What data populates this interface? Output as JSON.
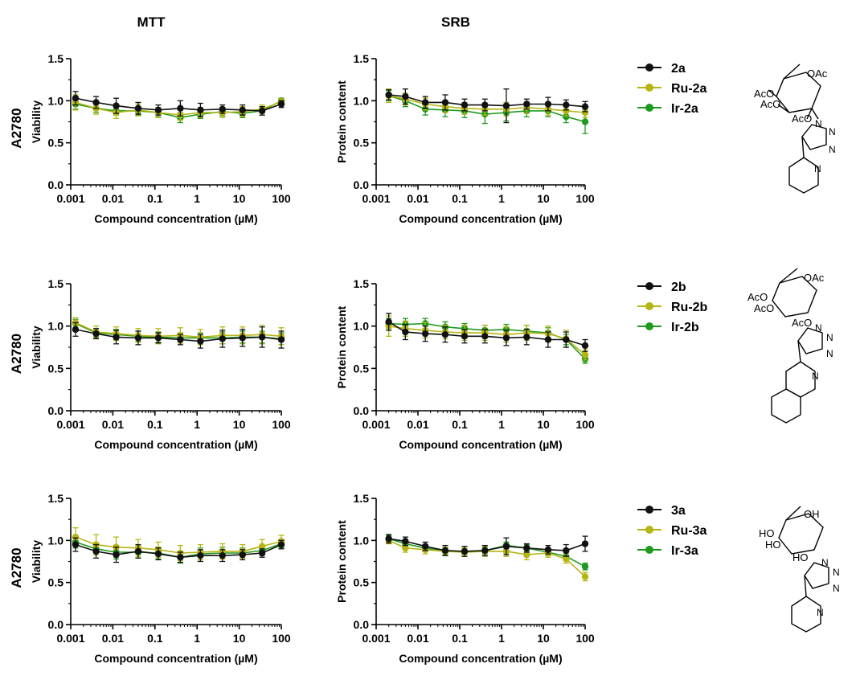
{
  "figure": {
    "columns": [
      "MTT",
      "SRB"
    ],
    "row_label": "A2780",
    "x_axis_label": "Compound concentration (µM)",
    "x_tick_labels": [
      "0.001",
      "0.01",
      "0.1",
      "1",
      "10",
      "100"
    ],
    "y_tick_labels": [
      "0.0",
      "0.5",
      "1.0",
      "1.5"
    ]
  },
  "legends": [
    {
      "entries": [
        {
          "label": "2a",
          "color": "#111111"
        },
        {
          "label": "Ru-2a",
          "color": "#b5b512"
        },
        {
          "label": "Ir-2a",
          "color": "#1e9a1e"
        }
      ]
    },
    {
      "entries": [
        {
          "label": "2b",
          "color": "#111111"
        },
        {
          "label": "Ru-2b",
          "color": "#b5b512"
        },
        {
          "label": "Ir-2b",
          "color": "#1e9a1e"
        }
      ]
    },
    {
      "entries": [
        {
          "label": "3a",
          "color": "#111111"
        },
        {
          "label": "Ru-3a",
          "color": "#b5b512"
        },
        {
          "label": "Ir-3a",
          "color": "#1e9a1e"
        }
      ]
    }
  ],
  "structures": [
    {
      "labels": [
        "OAc",
        "AcO",
        "AcO",
        "AcO",
        "N",
        "N",
        "N",
        "N"
      ]
    },
    {
      "labels": [
        "OAc",
        "AcO",
        "AcO",
        "AcO",
        "N",
        "N",
        "N",
        "N"
      ]
    },
    {
      "labels": [
        "OH",
        "HO",
        "HO",
        "HO",
        "N",
        "N",
        "N",
        "N"
      ]
    }
  ],
  "chart_data": [
    {
      "type": "scatter",
      "row": 0,
      "col": 0,
      "title": "MTT",
      "ylabel": "Viability",
      "xlabel": "Compound concentration (µM)",
      "xscale": "log",
      "xlim": [
        0.001,
        100
      ],
      "ylim": [
        0,
        1.5
      ],
      "x": [
        0.0013,
        0.004,
        0.012,
        0.04,
        0.12,
        0.4,
        1.2,
        4,
        12,
        35,
        100
      ],
      "series": [
        {
          "name": "2a",
          "color": "#111111",
          "values": [
            1.03,
            0.98,
            0.94,
            0.91,
            0.89,
            0.91,
            0.89,
            0.9,
            0.89,
            0.88,
            0.96
          ],
          "errors": [
            0.08,
            0.07,
            0.09,
            0.07,
            0.06,
            0.09,
            0.08,
            0.05,
            0.06,
            0.05,
            0.04
          ]
        },
        {
          "name": "Ru-2a",
          "color": "#b5b512",
          "values": [
            0.98,
            0.91,
            0.86,
            0.89,
            0.86,
            0.83,
            0.86,
            0.86,
            0.87,
            0.9,
            0.99
          ],
          "errors": [
            0.09,
            0.07,
            0.07,
            0.07,
            0.06,
            0.06,
            0.06,
            0.06,
            0.06,
            0.05,
            0.03
          ]
        },
        {
          "name": "Ir-2a",
          "color": "#1e9a1e",
          "values": [
            0.96,
            0.91,
            0.88,
            0.88,
            0.86,
            0.8,
            0.84,
            0.87,
            0.85,
            0.88,
            1.0
          ],
          "errors": [
            0.06,
            0.05,
            0.05,
            0.05,
            0.05,
            0.06,
            0.05,
            0.05,
            0.05,
            0.05,
            0.03
          ]
        }
      ]
    },
    {
      "type": "scatter",
      "row": 0,
      "col": 1,
      "title": "SRB",
      "ylabel": "Protein content",
      "xlabel": "Compound concentration (µM)",
      "xscale": "log",
      "xlim": [
        0.001,
        100
      ],
      "ylim": [
        0,
        1.5
      ],
      "x": [
        0.002,
        0.005,
        0.015,
        0.045,
        0.13,
        0.4,
        1.3,
        4,
        13,
        35,
        100
      ],
      "series": [
        {
          "name": "2a",
          "color": "#111111",
          "values": [
            1.07,
            1.05,
            0.98,
            0.98,
            0.95,
            0.95,
            0.94,
            0.96,
            0.96,
            0.95,
            0.93
          ],
          "errors": [
            0.06,
            0.09,
            0.07,
            0.09,
            0.07,
            0.07,
            0.2,
            0.06,
            0.08,
            0.06,
            0.06
          ]
        },
        {
          "name": "Ru-2a",
          "color": "#b5b512",
          "values": [
            1.06,
            1.02,
            0.96,
            0.93,
            0.91,
            0.9,
            0.9,
            0.92,
            0.9,
            0.88,
            0.86
          ],
          "errors": [
            0.08,
            0.07,
            0.07,
            0.07,
            0.07,
            0.07,
            0.08,
            0.07,
            0.07,
            0.06,
            0.06
          ]
        },
        {
          "name": "Ir-2a",
          "color": "#1e9a1e",
          "values": [
            1.06,
            1.0,
            0.9,
            0.89,
            0.88,
            0.84,
            0.86,
            0.88,
            0.88,
            0.81,
            0.75
          ],
          "errors": [
            0.06,
            0.07,
            0.07,
            0.08,
            0.08,
            0.11,
            0.1,
            0.07,
            0.07,
            0.07,
            0.14
          ]
        }
      ]
    },
    {
      "type": "scatter",
      "row": 1,
      "col": 0,
      "title": "MTT",
      "ylabel": "Viability",
      "xlabel": "Compound concentration (µM)",
      "xscale": "log",
      "xlim": [
        0.001,
        100
      ],
      "ylim": [
        0,
        1.5
      ],
      "x": [
        0.0013,
        0.004,
        0.012,
        0.04,
        0.12,
        0.4,
        1.2,
        4,
        12,
        35,
        100
      ],
      "series": [
        {
          "name": "2b",
          "color": "#111111",
          "values": [
            0.96,
            0.91,
            0.87,
            0.86,
            0.86,
            0.84,
            0.82,
            0.85,
            0.86,
            0.87,
            0.84
          ],
          "errors": [
            0.08,
            0.06,
            0.08,
            0.08,
            0.06,
            0.06,
            0.08,
            0.1,
            0.1,
            0.12,
            0.1
          ]
        },
        {
          "name": "Ru-2b",
          "color": "#b5b512",
          "values": [
            1.04,
            0.93,
            0.91,
            0.89,
            0.88,
            0.89,
            0.87,
            0.89,
            0.89,
            0.9,
            0.88
          ],
          "errors": [
            0.06,
            0.07,
            0.08,
            0.08,
            0.09,
            0.09,
            0.09,
            0.1,
            0.1,
            0.11,
            0.1
          ]
        },
        {
          "name": "Ir-2b",
          "color": "#1e9a1e",
          "values": [
            1.03,
            0.92,
            0.9,
            0.88,
            0.87,
            0.86,
            0.86,
            0.86,
            0.87,
            0.87,
            0.85
          ],
          "errors": [
            0.05,
            0.05,
            0.06,
            0.06,
            0.06,
            0.06,
            0.06,
            0.07,
            0.07,
            0.07,
            0.07
          ]
        }
      ]
    },
    {
      "type": "scatter",
      "row": 1,
      "col": 1,
      "title": "SRB",
      "ylabel": "Protein content",
      "xlabel": "Compound concentration (µM)",
      "xscale": "log",
      "xlim": [
        0.001,
        100
      ],
      "ylim": [
        0,
        1.5
      ],
      "x": [
        0.002,
        0.005,
        0.015,
        0.045,
        0.13,
        0.4,
        1.3,
        4,
        13,
        35,
        100
      ],
      "series": [
        {
          "name": "2b",
          "color": "#111111",
          "values": [
            1.05,
            0.93,
            0.91,
            0.9,
            0.88,
            0.88,
            0.86,
            0.87,
            0.84,
            0.84,
            0.77
          ],
          "errors": [
            0.1,
            0.09,
            0.09,
            0.09,
            0.08,
            0.08,
            0.09,
            0.09,
            0.09,
            0.09,
            0.07
          ]
        },
        {
          "name": "Ru-2b",
          "color": "#b5b512",
          "values": [
            1.0,
            0.97,
            0.95,
            0.93,
            0.92,
            0.92,
            0.9,
            0.92,
            0.91,
            0.85,
            0.66
          ],
          "errors": [
            0.12,
            0.09,
            0.09,
            0.08,
            0.09,
            0.09,
            0.09,
            0.09,
            0.09,
            0.1,
            0.06
          ]
        },
        {
          "name": "Ir-2b",
          "color": "#1e9a1e",
          "values": [
            1.03,
            1.02,
            1.03,
            0.99,
            0.97,
            0.95,
            0.96,
            0.94,
            0.92,
            0.84,
            0.61
          ],
          "errors": [
            0.06,
            0.07,
            0.06,
            0.06,
            0.06,
            0.06,
            0.06,
            0.07,
            0.06,
            0.06,
            0.05
          ]
        }
      ]
    },
    {
      "type": "scatter",
      "row": 2,
      "col": 0,
      "title": "MTT",
      "ylabel": "Viability",
      "xlabel": "Compound concentration (µM)",
      "xscale": "log",
      "xlim": [
        0.001,
        100
      ],
      "ylim": [
        0,
        1.5
      ],
      "x": [
        0.0013,
        0.004,
        0.012,
        0.04,
        0.12,
        0.4,
        1.2,
        4,
        12,
        35,
        100
      ],
      "series": [
        {
          "name": "3a",
          "color": "#111111",
          "values": [
            0.95,
            0.87,
            0.83,
            0.87,
            0.84,
            0.8,
            0.82,
            0.82,
            0.83,
            0.85,
            0.95
          ],
          "errors": [
            0.08,
            0.08,
            0.09,
            0.08,
            0.07,
            0.06,
            0.07,
            0.07,
            0.06,
            0.05,
            0.05
          ]
        },
        {
          "name": "Ru-3a",
          "color": "#b5b512",
          "values": [
            1.04,
            0.95,
            0.92,
            0.91,
            0.89,
            0.85,
            0.86,
            0.87,
            0.87,
            0.93,
            0.99
          ],
          "errors": [
            0.11,
            0.12,
            0.12,
            0.1,
            0.09,
            0.09,
            0.09,
            0.09,
            0.08,
            0.08,
            0.07
          ]
        },
        {
          "name": "Ir-3a",
          "color": "#1e9a1e",
          "values": [
            0.98,
            0.9,
            0.86,
            0.86,
            0.85,
            0.8,
            0.84,
            0.85,
            0.85,
            0.88,
            0.96
          ],
          "errors": [
            0.07,
            0.07,
            0.08,
            0.07,
            0.07,
            0.07,
            0.07,
            0.07,
            0.06,
            0.06,
            0.05
          ]
        }
      ]
    },
    {
      "type": "scatter",
      "row": 2,
      "col": 1,
      "title": "SRB",
      "ylabel": "Protein content",
      "xlabel": "Compound concentration (µM)",
      "xscale": "log",
      "xlim": [
        0.001,
        100
      ],
      "ylim": [
        0,
        1.5
      ],
      "x": [
        0.002,
        0.005,
        0.015,
        0.045,
        0.13,
        0.4,
        1.3,
        4,
        13,
        35,
        100
      ],
      "series": [
        {
          "name": "3a",
          "color": "#111111",
          "values": [
            1.02,
            0.99,
            0.93,
            0.88,
            0.87,
            0.88,
            0.93,
            0.91,
            0.89,
            0.88,
            0.96
          ],
          "errors": [
            0.05,
            0.05,
            0.05,
            0.06,
            0.06,
            0.06,
            0.1,
            0.05,
            0.05,
            0.07,
            0.09
          ]
        },
        {
          "name": "Ru-3a",
          "color": "#b5b512",
          "values": [
            1.0,
            0.91,
            0.89,
            0.87,
            0.86,
            0.87,
            0.87,
            0.83,
            0.85,
            0.78,
            0.57
          ],
          "errors": [
            0.04,
            0.05,
            0.05,
            0.05,
            0.05,
            0.06,
            0.06,
            0.06,
            0.05,
            0.05,
            0.05
          ]
        },
        {
          "name": "Ir-3a",
          "color": "#1e9a1e",
          "values": [
            1.02,
            0.96,
            0.91,
            0.87,
            0.87,
            0.88,
            0.94,
            0.91,
            0.86,
            0.81,
            0.69
          ],
          "errors": [
            0.04,
            0.04,
            0.04,
            0.04,
            0.04,
            0.04,
            0.04,
            0.04,
            0.04,
            0.04,
            0.04
          ]
        }
      ]
    }
  ]
}
